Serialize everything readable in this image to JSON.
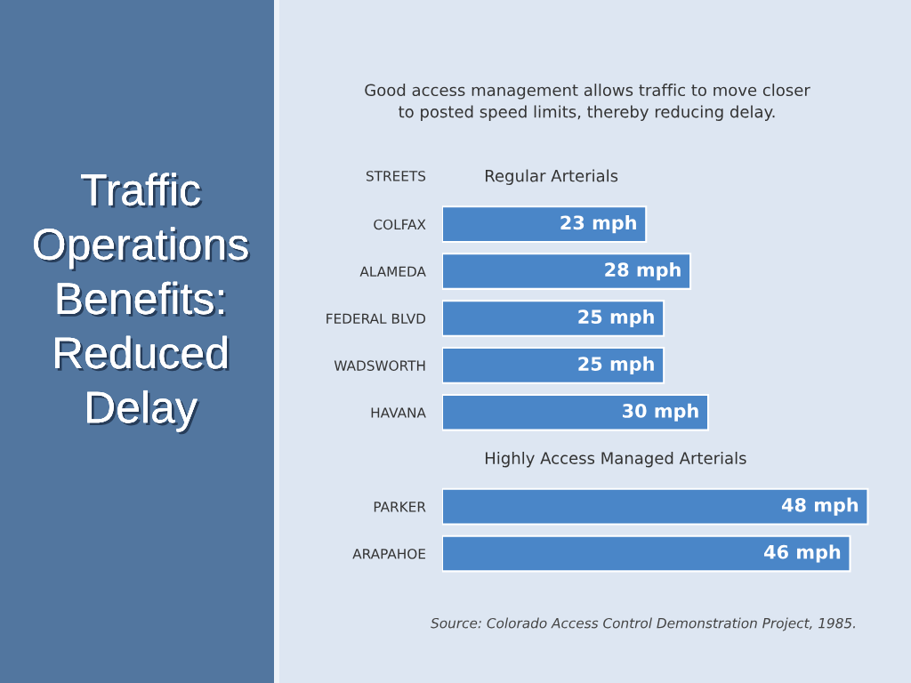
{
  "chart_data": {
    "type": "bar",
    "orientation": "horizontal",
    "title": "Traffic Operations Benefits: Reduced Delay",
    "subtitle": "Good access management allows traffic to move closer\nto posted speed limits, thereby reducing delay.",
    "ylabel": "STREETS",
    "categories": [
      "COLFAX",
      "ALAMEDA",
      "FEDERAL BLVD",
      "WADSWORTH",
      "HAVANA",
      "PARKER",
      "ARAPAHOE"
    ],
    "series": [
      {
        "name": "Regular Arterials",
        "color": "#4a86c8",
        "values": [
          23,
          28,
          25,
          25,
          30,
          null,
          null
        ],
        "value_labels": [
          "23 mph",
          "28 mph",
          "25 mph",
          "25 mph",
          "30 mph",
          null,
          null
        ]
      },
      {
        "name": "Highly Access Managed Arterials",
        "color": "#4a86c8",
        "values": [
          null,
          null,
          null,
          null,
          null,
          48,
          46
        ],
        "value_labels": [
          null,
          null,
          null,
          null,
          null,
          "48 mph",
          "46 mph"
        ]
      }
    ],
    "tick_labels": "y",
    "annotations": [
      "Source: Colorado Access Control Demonstration Project, 1985."
    ]
  }
}
